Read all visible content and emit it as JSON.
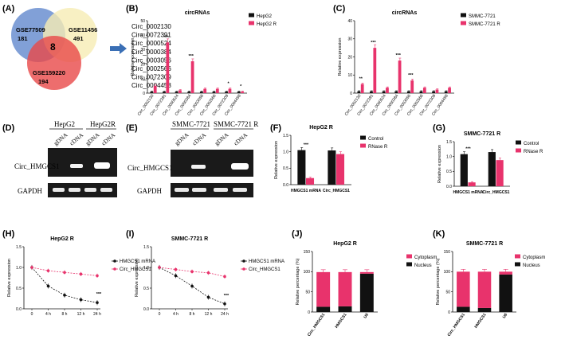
{
  "colors": {
    "pink": "#e8336c",
    "black": "#111111",
    "blue": "#6b8fd0",
    "yellow": "#f6ecb4",
    "red": "#e84848",
    "arrow": "#3a6fb5"
  },
  "panels": {
    "A": {
      "label": "(A)",
      "sets": [
        {
          "name": "GSE77509",
          "count": "181"
        },
        {
          "name": "GSE11456",
          "count": "491"
        },
        {
          "name": "GSE159220",
          "count": "194"
        }
      ],
      "overlap": "8",
      "circ_list": [
        "Circ_0002130",
        "Circ_0072391",
        "Circ_0000524",
        "Circ_0000384",
        "Circ_0003056",
        "Circ_0002566",
        "Circ_0072309",
        "Circ_0004458"
      ]
    },
    "D": {
      "label": "(D)",
      "groups": [
        "HepG2",
        "HepG2R"
      ],
      "lanes": [
        "gDNA",
        "cDNA",
        "gDNA",
        "cDNA"
      ],
      "rows": [
        "Circ_HMGCS1",
        "GAPDH"
      ]
    },
    "E": {
      "label": "(E)",
      "groups": [
        "SMMC-7721",
        "SMMC-7721 R"
      ],
      "lanes": [
        "gDNA",
        "cDNA",
        "gDNA",
        "cDNA"
      ],
      "rows": [
        "Circ_HMGCS1",
        "GAPDH"
      ]
    }
  },
  "chart_data": [
    {
      "id": "B",
      "label": "(B)",
      "type": "bar",
      "title": "circRNAs",
      "categories": [
        "Circ_0002130",
        "Circ_0072391",
        "Circ_0000524",
        "Circ_0000384",
        "Circ_0003056",
        "Circ_0002566",
        "Circ_0072309",
        "Circ_0004458"
      ],
      "series": [
        {
          "name": "HepG2",
          "color": "#111111",
          "values": [
            1,
            1,
            1,
            1,
            1,
            1,
            1,
            1
          ]
        },
        {
          "name": "HepG2 R",
          "color": "#e8336c",
          "values": [
            5,
            35,
            2,
            22,
            3,
            3,
            3,
            1
          ]
        }
      ],
      "sig": [
        "*",
        "***",
        "",
        "***",
        "",
        "",
        "*",
        "*"
      ],
      "ylabel": "Relative expression",
      "ylim": [
        0,
        50
      ],
      "yticks": [
        0,
        10,
        20,
        30,
        40,
        50
      ]
    },
    {
      "id": "C",
      "label": "(C)",
      "type": "bar",
      "title": "circRNAs",
      "categories": [
        "Circ_0002130",
        "Circ_0072391",
        "Circ_0000524",
        "Circ_0000384",
        "Circ_0003056",
        "Circ_0002566",
        "Circ_0072309",
        "Circ_0004458"
      ],
      "series": [
        {
          "name": "SMMC-7721",
          "color": "#111111",
          "values": [
            1,
            1,
            1,
            1,
            1,
            1,
            1,
            1
          ]
        },
        {
          "name": "SMMC-7721 R",
          "color": "#e8336c",
          "values": [
            5,
            25,
            3,
            18,
            7,
            3,
            2,
            3
          ]
        }
      ],
      "sig": [
        "**",
        "***",
        "",
        "***",
        "***",
        "",
        "",
        ""
      ],
      "ylabel": "Relative expression",
      "ylim": [
        0,
        40
      ],
      "yticks": [
        0,
        10,
        20,
        30,
        40
      ]
    },
    {
      "id": "F",
      "label": "(F)",
      "type": "bar",
      "title": "HepG2 R",
      "categories": [
        "HMGCS1 mRNA",
        "Circ_HMGCS1"
      ],
      "series": [
        {
          "name": "Control",
          "color": "#111111",
          "values": [
            1.05,
            1.04
          ]
        },
        {
          "name": "RNase R",
          "color": "#e8336c",
          "values": [
            0.2,
            0.93
          ]
        }
      ],
      "sig": [
        "***",
        ""
      ],
      "ylabel": "Relative expression",
      "ylim": [
        0,
        1.5
      ],
      "yticks": [
        "0.0",
        "0.5",
        "1.0",
        "1.5"
      ]
    },
    {
      "id": "G",
      "label": "(G)",
      "type": "bar",
      "title": "SMMC-7721 R",
      "categories": [
        "HMGCS1 mRNA",
        "Circ_HMGCS1"
      ],
      "series": [
        {
          "name": "Control",
          "color": "#111111",
          "values": [
            1.08,
            1.15
          ]
        },
        {
          "name": "RNase R",
          "color": "#e8336c",
          "values": [
            0.13,
            0.88
          ]
        }
      ],
      "sig": [
        "***",
        ""
      ],
      "ylabel": "Relative expression",
      "ylim": [
        0,
        1.5
      ],
      "yticks": [
        "0.0",
        "0.5",
        "1.0",
        "1.5"
      ]
    },
    {
      "id": "H",
      "label": "(H)",
      "type": "line",
      "title": "HepG2 R",
      "x": [
        "0",
        "4 h",
        "8 h",
        "12 h",
        "24 h"
      ],
      "series": [
        {
          "name": "HMGCS1 mRNA",
          "color": "#111111",
          "values": [
            1.0,
            0.55,
            0.33,
            0.22,
            0.15
          ]
        },
        {
          "name": "Circ_HMGCS1",
          "color": "#e8336c",
          "values": [
            1.0,
            0.92,
            0.88,
            0.84,
            0.8
          ]
        }
      ],
      "sig_text": "***",
      "ylabel": "Relative expression",
      "ylim": [
        0,
        1.5
      ],
      "yticks": [
        "0.0",
        "0.5",
        "1.0",
        "1.5"
      ]
    },
    {
      "id": "I",
      "label": "(I)",
      "type": "line",
      "title": "SMMC-7721 R",
      "x": [
        "0",
        "4 h",
        "8 h",
        "12 h",
        "24 h"
      ],
      "series": [
        {
          "name": "HMGCS1 mRNA",
          "color": "#111111",
          "values": [
            1.0,
            0.8,
            0.55,
            0.28,
            0.12
          ]
        },
        {
          "name": "Circ_HMGCS1",
          "color": "#e8336c",
          "values": [
            1.0,
            0.95,
            0.9,
            0.87,
            0.78
          ]
        }
      ],
      "sig_text": "***",
      "ylabel": "Relative expression",
      "ylim": [
        0,
        1.5
      ],
      "yticks": [
        "0.0",
        "0.5",
        "1.0",
        "1.5"
      ]
    },
    {
      "id": "J",
      "label": "(J)",
      "type": "bar",
      "title": "HepG2 R",
      "stacked": true,
      "categories": [
        "Circ_HMGCS1",
        "HMGCS1",
        "U6"
      ],
      "series": [
        {
          "name": "Cytoplasm",
          "color": "#e8336c",
          "values": [
            86,
            85,
            4
          ]
        },
        {
          "name": "Nucleus",
          "color": "#111111",
          "values": [
            13,
            14,
            95
          ]
        }
      ],
      "ylabel": "Relative percentage (%)",
      "ylim": [
        0,
        150
      ],
      "yticks": [
        0,
        50,
        100,
        150
      ]
    },
    {
      "id": "K",
      "label": "(K)",
      "type": "bar",
      "title": "SMMC-7721 R",
      "stacked": true,
      "categories": [
        "Circ_HMGCS1",
        "HMGCS1",
        "U6"
      ],
      "series": [
        {
          "name": "Cytoplasm",
          "color": "#e8336c",
          "values": [
            87,
            90,
            7
          ]
        },
        {
          "name": "Nucleus",
          "color": "#111111",
          "values": [
            13,
            10,
            93
          ]
        }
      ],
      "ylabel": "Relative percentage (%)",
      "ylim": [
        0,
        150
      ],
      "yticks": [
        0,
        50,
        100,
        150
      ]
    }
  ]
}
